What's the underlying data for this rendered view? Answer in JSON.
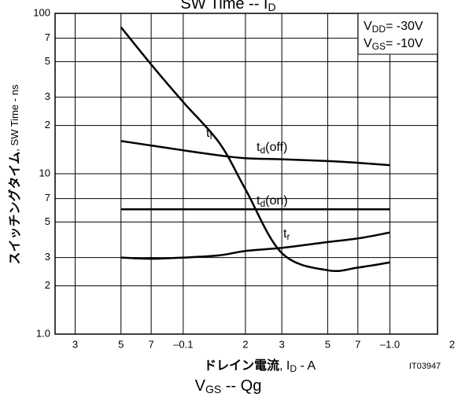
{
  "chart_data": {
    "type": "line",
    "title": [
      "SW Time -- I",
      "D"
    ],
    "subtitle": [
      "V",
      "GS",
      " -- Qg"
    ],
    "ylabel": [
      "スイッチングタイム",
      ", SW Time - ns"
    ],
    "xlabel": [
      "ドレイン電流",
      ", I",
      "D",
      " - A"
    ],
    "code": "IT03947",
    "conditions": [
      [
        "V",
        "DD",
        "= -30V"
      ],
      [
        "V",
        "GS",
        "= -10V"
      ]
    ],
    "log_x": true,
    "log_y": true,
    "grid": true,
    "xlim": [
      0.024,
      1.7
    ],
    "ylim": [
      1,
      100
    ],
    "xticks": [
      {
        "value": 0.03,
        "label": "3"
      },
      {
        "value": 0.05,
        "label": "5"
      },
      {
        "value": 0.07,
        "label": "7"
      },
      {
        "value": 0.1,
        "label": "–0.1"
      },
      {
        "value": 0.2,
        "label": "2"
      },
      {
        "value": 0.3,
        "label": "3"
      },
      {
        "value": 0.5,
        "label": "5"
      },
      {
        "value": 0.7,
        "label": "7"
      },
      {
        "value": 1,
        "label": "–1.0"
      },
      {
        "value": 2,
        "label": "2"
      }
    ],
    "yticks": [
      {
        "value": 1,
        "label": "1.0"
      },
      2,
      3,
      5,
      7,
      10,
      {
        "value": 20,
        "label": "2"
      },
      {
        "value": 30,
        "label": "3"
      },
      {
        "value": 50,
        "label": "5"
      },
      {
        "value": 70,
        "label": "7"
      },
      100
    ],
    "x": [
      0.05,
      0.07,
      0.1,
      0.15,
      0.2,
      0.3,
      0.5,
      0.7,
      1.0
    ],
    "series": [
      {
        "name": [
          "t",
          "f",
          ""
        ],
        "color": "#000000",
        "values": [
          82,
          48,
          28,
          15.5,
          8,
          3.2,
          2.5,
          2.6,
          2.8
        ]
      },
      {
        "name": [
          "t",
          "d",
          "(off)"
        ],
        "color": "#000000",
        "values": [
          16,
          15,
          14,
          13,
          12.5,
          12.3,
          12,
          11.7,
          11.3
        ]
      },
      {
        "name": [
          "t",
          "d",
          "(on)"
        ],
        "color": "#000000",
        "values": [
          6,
          6,
          6,
          6,
          6,
          6,
          6,
          6,
          6
        ]
      },
      {
        "name": [
          "t",
          "r",
          ""
        ],
        "color": "#000000",
        "values": [
          3,
          2.95,
          3,
          3.1,
          3.3,
          3.45,
          3.75,
          3.95,
          4.3
        ]
      }
    ]
  }
}
